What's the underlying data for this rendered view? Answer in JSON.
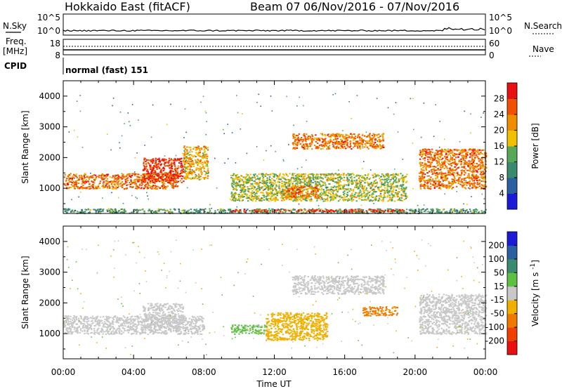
{
  "header": {
    "station": "Hokkaido East (fitACF)",
    "beam": "Beam 07",
    "period": "06/Nov/2016 - 07/Nov/2016"
  },
  "strip": {
    "nsky_label": "N.Sky",
    "nsky_ticks": [
      "10^5",
      "10^0"
    ],
    "nsearch_label": "N.Search",
    "nsearch_ticks": [
      "10^5",
      "10^0"
    ],
    "freq_label": "Freq.",
    "freq_unit": "[MHz]",
    "freq_ticks": [
      "18",
      "8"
    ],
    "nave_label": "Nave",
    "nave_ticks": [
      "60",
      "0"
    ],
    "cpid_label": "CPID",
    "cpid_value": "normal (fast) 151"
  },
  "chart_data": [
    {
      "type": "heatmap",
      "title": "",
      "ylabel": "Slant Range [km]",
      "xlabel": "",
      "x_ticks": [
        "00:00",
        "04:00",
        "08:00",
        "12:00",
        "16:00",
        "20:00",
        "00:00"
      ],
      "y_ticks": [
        1000,
        2000,
        3000,
        4000
      ],
      "ylim": [
        180,
        4500
      ],
      "xlim_hours": [
        0,
        24
      ],
      "colorbar": {
        "label": "Power [dB]",
        "ticks": [
          4,
          8,
          12,
          16,
          20,
          24,
          28
        ],
        "colors": [
          "#1a1ad8",
          "#2a5fa0",
          "#3a8a6e",
          "#58a85a",
          "#f0c000",
          "#f08c00",
          "#f05000",
          "#e81010"
        ]
      },
      "regions": [
        {
          "feature": "near-range echoes",
          "t_start": 0,
          "t_end": 24,
          "r_start": 200,
          "r_end": 350,
          "value_db": 12
        },
        {
          "feature": "ionospheric band A",
          "t_start": 0,
          "t_end": 6.5,
          "r_start": 1000,
          "r_end": 1500,
          "value_db": 24
        },
        {
          "feature": "ionospheric band A peak",
          "t_start": 4.5,
          "t_end": 6.8,
          "r_start": 1200,
          "r_end": 2000,
          "value_db": 28
        },
        {
          "feature": "oblique streak",
          "t_start": 6.8,
          "t_end": 8.2,
          "r_start": 1300,
          "r_end": 2400,
          "value_db": 20
        },
        {
          "feature": "midday patches",
          "t_start": 9.5,
          "t_end": 19.5,
          "r_start": 600,
          "r_end": 1500,
          "value_db": 16
        },
        {
          "feature": "midday strong patch",
          "t_start": 12.5,
          "t_end": 14.5,
          "r_start": 700,
          "r_end": 1100,
          "value_db": 24
        },
        {
          "feature": "upper band",
          "t_start": 13,
          "t_end": 18.2,
          "r_start": 2300,
          "r_end": 2800,
          "value_db": 24
        },
        {
          "feature": "bottom strong line",
          "t_start": 9.5,
          "t_end": 19.5,
          "r_start": 250,
          "r_end": 330,
          "value_db": 28
        },
        {
          "feature": "evening band",
          "t_start": 20.2,
          "t_end": 24,
          "r_start": 1000,
          "r_end": 2300,
          "value_db": 24
        }
      ]
    },
    {
      "type": "heatmap",
      "title": "",
      "ylabel": "Slant Range [km]",
      "xlabel": "Time UT",
      "x_ticks": [
        "00:00",
        "04:00",
        "08:00",
        "12:00",
        "16:00",
        "20:00",
        "00:00"
      ],
      "y_ticks": [
        1000,
        2000,
        3000,
        4000
      ],
      "ylim": [
        180,
        4500
      ],
      "xlim_hours": [
        0,
        24
      ],
      "colorbar": {
        "label": "Velocity [m s",
        "label_sup": "-1",
        "label_close": "]",
        "ticks": [
          200,
          100,
          50,
          15,
          -15,
          -50,
          -100,
          -200
        ],
        "colors": [
          "#1a1ad8",
          "#2a5fa0",
          "#3a8a6e",
          "#5ec040",
          "#c8c8c8",
          "#f0b000",
          "#f07800",
          "#f04000",
          "#e81010"
        ]
      },
      "regions": [
        {
          "feature": "ground scatter band",
          "t_start": 0,
          "t_end": 8,
          "r_start": 1000,
          "r_end": 1600,
          "value_ms": 0
        },
        {
          "feature": "ground scatter peak",
          "t_start": 4.5,
          "t_end": 6.8,
          "r_start": 1200,
          "r_end": 2000,
          "value_ms": 0
        },
        {
          "feature": "midday negative flow",
          "t_start": 11.5,
          "t_end": 15,
          "r_start": 800,
          "r_end": 1700,
          "value_ms": -30
        },
        {
          "feature": "midday positive patch",
          "t_start": 9.5,
          "t_end": 11.5,
          "r_start": 1000,
          "r_end": 1300,
          "value_ms": 25
        },
        {
          "feature": "upper grey band",
          "t_start": 13,
          "t_end": 18.2,
          "r_start": 2300,
          "r_end": 2900,
          "value_ms": 0
        },
        {
          "feature": "evening band",
          "t_start": 20.2,
          "t_end": 24,
          "r_start": 1000,
          "r_end": 2300,
          "value_ms": 0
        },
        {
          "feature": "late negative patch",
          "t_start": 17,
          "t_end": 19,
          "r_start": 1600,
          "r_end": 1900,
          "value_ms": -60
        }
      ]
    }
  ]
}
